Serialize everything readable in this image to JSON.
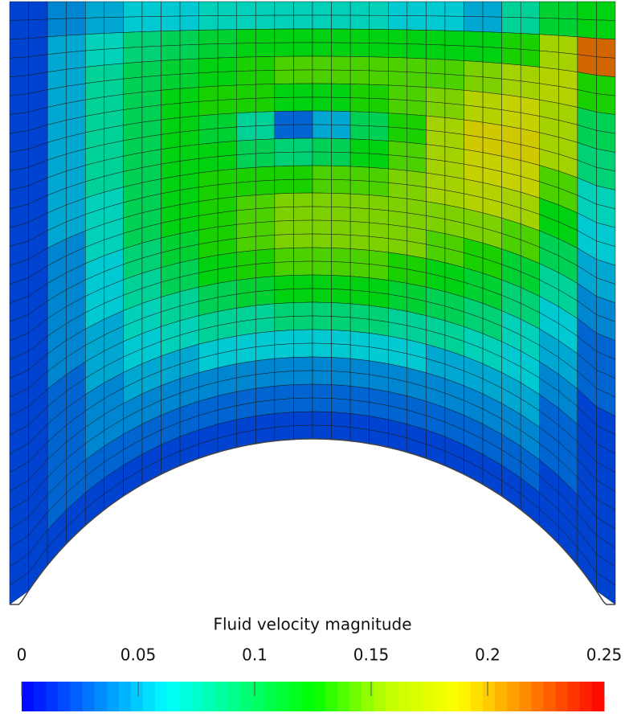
{
  "chart_data": {
    "type": "mesh",
    "colorbar_title": "Fluid velocity magnitude",
    "zlim": [
      0,
      0.25
    ],
    "zticks": [
      0,
      0.05,
      0.1,
      0.15,
      0.2,
      0.25
    ],
    "colormap": [
      "#0000ff",
      "#0080ff",
      "#00ffff",
      "#00ff80",
      "#00ff00",
      "#c0ff00",
      "#ffff00",
      "#ff8000",
      "#ff0000"
    ],
    "values": [
      [
        0.02,
        0.04,
        0.05,
        0.06,
        0.06,
        0.07,
        0.07,
        0.07,
        0.07,
        0.07,
        0.06,
        0.06,
        0.05,
        0.08,
        0.11,
        0.12
      ],
      [
        0.02,
        0.05,
        0.07,
        0.09,
        0.1,
        0.11,
        0.12,
        0.12,
        0.12,
        0.12,
        0.12,
        0.12,
        0.12,
        0.13,
        0.16,
        0.22
      ],
      [
        0.02,
        0.05,
        0.08,
        0.1,
        0.11,
        0.12,
        0.13,
        0.14,
        0.14,
        0.14,
        0.14,
        0.14,
        0.15,
        0.16,
        0.17,
        0.13
      ],
      [
        0.02,
        0.05,
        0.08,
        0.1,
        0.12,
        0.13,
        0.13,
        0.12,
        0.12,
        0.13,
        0.14,
        0.15,
        0.17,
        0.18,
        0.16,
        0.1
      ],
      [
        0.02,
        0.05,
        0.08,
        0.1,
        0.12,
        0.11,
        0.08,
        0.03,
        0.05,
        0.1,
        0.13,
        0.16,
        0.19,
        0.19,
        0.16,
        0.09
      ],
      [
        0.02,
        0.05,
        0.08,
        0.1,
        0.12,
        0.12,
        0.1,
        0.09,
        0.1,
        0.12,
        0.14,
        0.16,
        0.18,
        0.18,
        0.14,
        0.07
      ],
      [
        0.02,
        0.05,
        0.07,
        0.1,
        0.12,
        0.13,
        0.13,
        0.13,
        0.14,
        0.14,
        0.15,
        0.16,
        0.17,
        0.16,
        0.12,
        0.06
      ],
      [
        0.02,
        0.04,
        0.07,
        0.1,
        0.12,
        0.13,
        0.14,
        0.15,
        0.15,
        0.15,
        0.15,
        0.15,
        0.15,
        0.14,
        0.1,
        0.05
      ],
      [
        0.02,
        0.04,
        0.06,
        0.09,
        0.11,
        0.13,
        0.14,
        0.15,
        0.15,
        0.15,
        0.15,
        0.14,
        0.13,
        0.11,
        0.08,
        0.04
      ],
      [
        0.02,
        0.04,
        0.06,
        0.08,
        0.1,
        0.12,
        0.13,
        0.14,
        0.14,
        0.14,
        0.13,
        0.12,
        0.11,
        0.09,
        0.06,
        0.03
      ],
      [
        0.02,
        0.04,
        0.05,
        0.07,
        0.08,
        0.1,
        0.11,
        0.12,
        0.12,
        0.12,
        0.11,
        0.1,
        0.09,
        0.07,
        0.05,
        0.03
      ],
      [
        0.02,
        0.03,
        0.05,
        0.06,
        0.07,
        0.08,
        0.08,
        0.09,
        0.09,
        0.09,
        0.08,
        0.08,
        0.07,
        0.06,
        0.04,
        0.02
      ],
      [
        0.02,
        0.03,
        0.04,
        0.05,
        0.05,
        0.06,
        0.06,
        0.06,
        0.06,
        0.06,
        0.06,
        0.05,
        0.05,
        0.05,
        0.03,
        0.02
      ],
      [
        0.02,
        0.03,
        0.04,
        0.04,
        0.04,
        0.04,
        0.04,
        0.04,
        0.04,
        0.04,
        0.04,
        0.04,
        0.04,
        0.04,
        0.03,
        0.02
      ],
      [
        0.02,
        0.03,
        0.03,
        0.03,
        0.03,
        0.03,
        0.03,
        0.03,
        0.03,
        0.03,
        0.03,
        0.03,
        0.03,
        0.03,
        0.02,
        0.02
      ],
      [
        0.02,
        0.02,
        0.02,
        0.02,
        0.02,
        0.02,
        0.02,
        0.02,
        0.02,
        0.02,
        0.02,
        0.02,
        0.02,
        0.02,
        0.02,
        0.02
      ]
    ]
  }
}
